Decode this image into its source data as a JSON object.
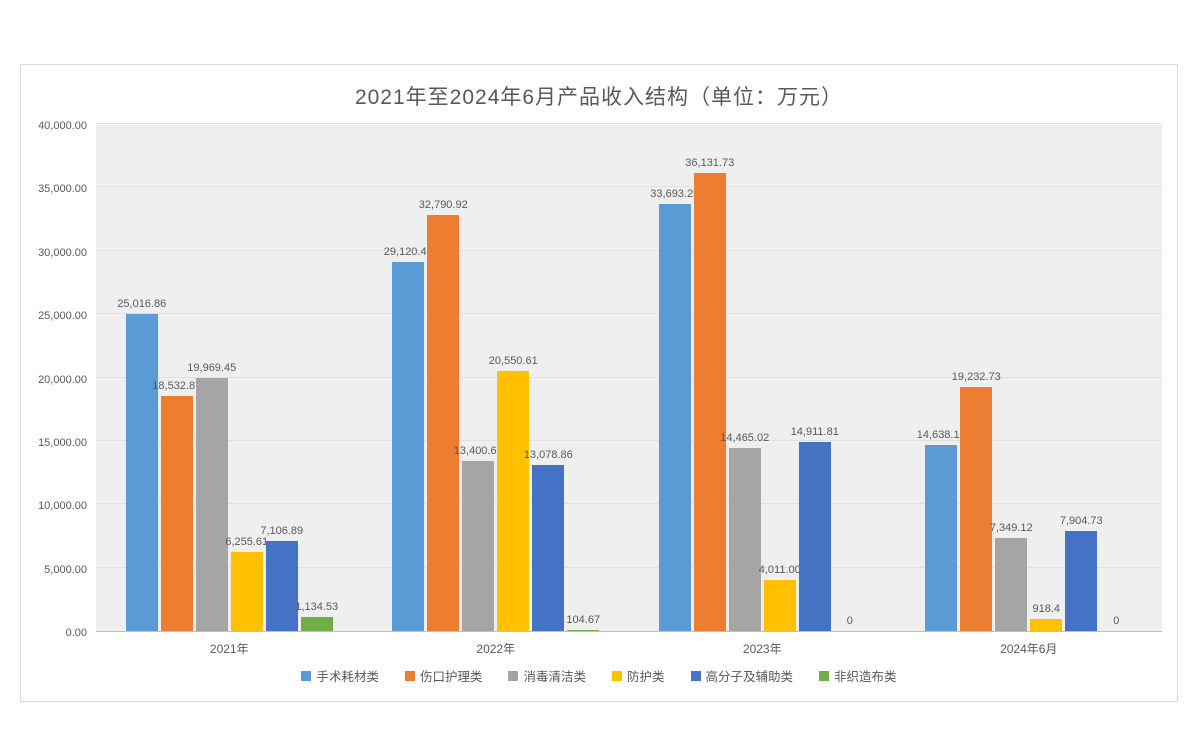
{
  "chart_data": {
    "type": "bar",
    "title": "2021年至2024年6月产品收入结构（单位：万元）",
    "xlabel": "",
    "ylabel": "",
    "categories": [
      "2021年",
      "2022年",
      "2023年",
      "2024年6月"
    ],
    "series": [
      {
        "name": "手术耗材类",
        "color": "#5B9BD5",
        "values": [
          25016.86,
          29120.4,
          33693.29,
          14638.13
        ],
        "labels": [
          "25,016.86",
          "29,120.40",
          "33,693.29",
          "14,638.13"
        ]
      },
      {
        "name": "伤口护理类",
        "color": "#ED7D31",
        "values": [
          18532.87,
          32790.92,
          36131.73,
          19232.73
        ],
        "labels": [
          "18,532.87",
          "32,790.92",
          "36,131.73",
          "19,232.73"
        ]
      },
      {
        "name": "消毒清洁类",
        "color": "#A5A5A5",
        "values": [
          19969.45,
          13400.64,
          14465.02,
          7349.12
        ],
        "labels": [
          "19,969.45",
          "13,400.64",
          "14,465.02",
          "7,349.12"
        ]
      },
      {
        "name": "防护类",
        "color": "#FFC000",
        "values": [
          6255.61,
          20550.61,
          4011.0,
          918.4
        ],
        "labels": [
          "6,255.61",
          "20,550.61",
          "4,011.00",
          "918.4"
        ]
      },
      {
        "name": "高分子及辅助类",
        "color": "#4472C4",
        "values": [
          7106.89,
          13078.86,
          14911.81,
          7904.73
        ],
        "labels": [
          "7,106.89",
          "13,078.86",
          "14,911.81",
          "7,904.73"
        ]
      },
      {
        "name": "非织造布类",
        "color": "#70AD47",
        "values": [
          1134.53,
          104.67,
          0,
          0
        ],
        "labels": [
          "1,134.53",
          "104.67",
          "0",
          "0"
        ]
      }
    ],
    "ylim": [
      0,
      40000
    ],
    "ytick_step": 5000,
    "yticks": [
      "0.00",
      "5,000.00",
      "10,000.00",
      "15,000.00",
      "20,000.00",
      "25,000.00",
      "30,000.00",
      "35,000.00",
      "40,000.00"
    ],
    "grid": true,
    "legend_position": "bottom",
    "plot_bg": "#efefef",
    "text_color": "#595959"
  }
}
